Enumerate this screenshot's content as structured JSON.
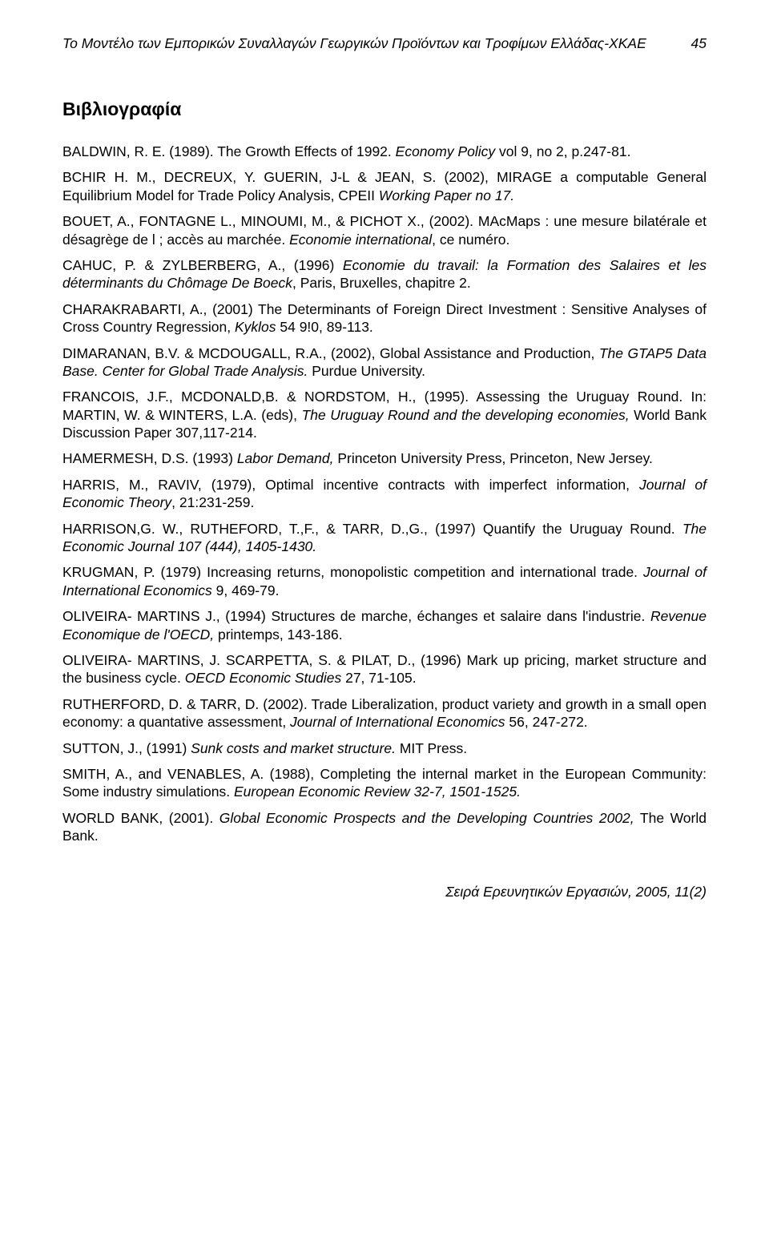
{
  "header": {
    "title": "Το Μοντέλο των Εμπορικών Συναλλαγών Γεωργικών Προϊόντων και Τροφίμων Ελλάδας-ΧΚΑΕ",
    "pageNumber": "45"
  },
  "sectionHeading": "Βιβλιογραφία",
  "references": [
    "BALDWIN, R. E. (1989). The Growth Effects of 1992. <em>Economy Policy</em> vol 9, no 2, p.247-81.",
    "BCHIR H. M., DECREUX, Y. GUERIN, J-L & JEAN, S. (2002), MIRAGE a computable General Equilibrium Model for Trade Policy Analysis, CPEII <em>Working Paper no 17.</em>",
    "BOUET, A., FONTAGNE L., MINOUMI, M., & PICHOT X., (2002). MAcMaps : une mesure bilatérale et désagrège de l ; accès au marchée. <em>Economie international</em>, ce numéro.",
    "CAHUC, P. & ZYLBERBERG, A., (1996) <em>Economie du travail: la Formation des Salaires et les déterminants du Chômage De Boeck</em>, Paris, Bruxelles, chapitre 2.",
    "CHARAKRABARTI, A., (2001) The Determinants of Foreign Direct Investment : Sensitive Analyses of Cross Country Regression, <em>Kyklos</em> 54 9!0, 89-113.",
    "DIMARANAN, B.V. & MCDOUGALL, R.A., (2002), Global Assistance and Production, <em>The GTAP5 Data Base. Center for Global Trade Analysis.</em> Purdue University.",
    "FRANCOIS, J.F., MCDONALD,B. & NORDSTOM, H., (1995). Assessing the Uruguay Round. In: MARTIN, W. & WINTERS, L.A. (eds), <em>The Uruguay Round and the developing economies,</em> World Bank Discussion Paper 307,117-214.",
    "HAMERMESH, D.S. (1993) <em>Labor Demand,</em> Princeton University Press, Princeton, New Jersey.",
    "HARRIS, M., RAVIV, (1979), Optimal incentive contracts with imperfect information, <em>Journal of Economic Theory</em>, 21:231-259.",
    "HARRISON,G. W., RUTHEFORD, T.,F., & TARR, D.,G., (1997) Quantify the Uruguay Round. <em>The Economic Journal 107 (444), 1405-1430.</em>",
    "KRUGMAN, P. (1979) Increasing returns, monopolistic competition and international trade. <em>Journal of International Economics</em> 9, 469-79.",
    "OLIVEIRA- MARTINS J., (1994) Structures de marche, échanges et salaire dans l'industrie. <em>Revenue Economique de l'OECD,</em> printemps, 143-186.",
    "OLIVEIRA- MARTINS, J.  SCARPETTA, S. & PILAT, D., (1996) Mark up pricing, market structure and the business cycle. <em>OECD Economic Studies</em> 27, 71-105.",
    "RUTHERFORD, D. & TARR, D. (2002). Trade Liberalization, product variety and growth in a small open economy: a quantative assessment, <em>Journal of International Economics</em> 56, 247-272.",
    "SUTTON, J., (1991) <em>Sunk costs and market structure.</em> MIT Press.",
    "SMITH, A., and VENABLES, A. (1988), Completing the internal market in the European Community: Some industry simulations. <em>European Economic Review 32-7, 1501-1525.</em>",
    "WORLD BANK, (2001). <em>Global Economic Prospects and the Developing Countries 2002,</em> The World Bank."
  ],
  "footer": "Σειρά Ερευνητικών Εργασιών, 2005, 11(2)"
}
